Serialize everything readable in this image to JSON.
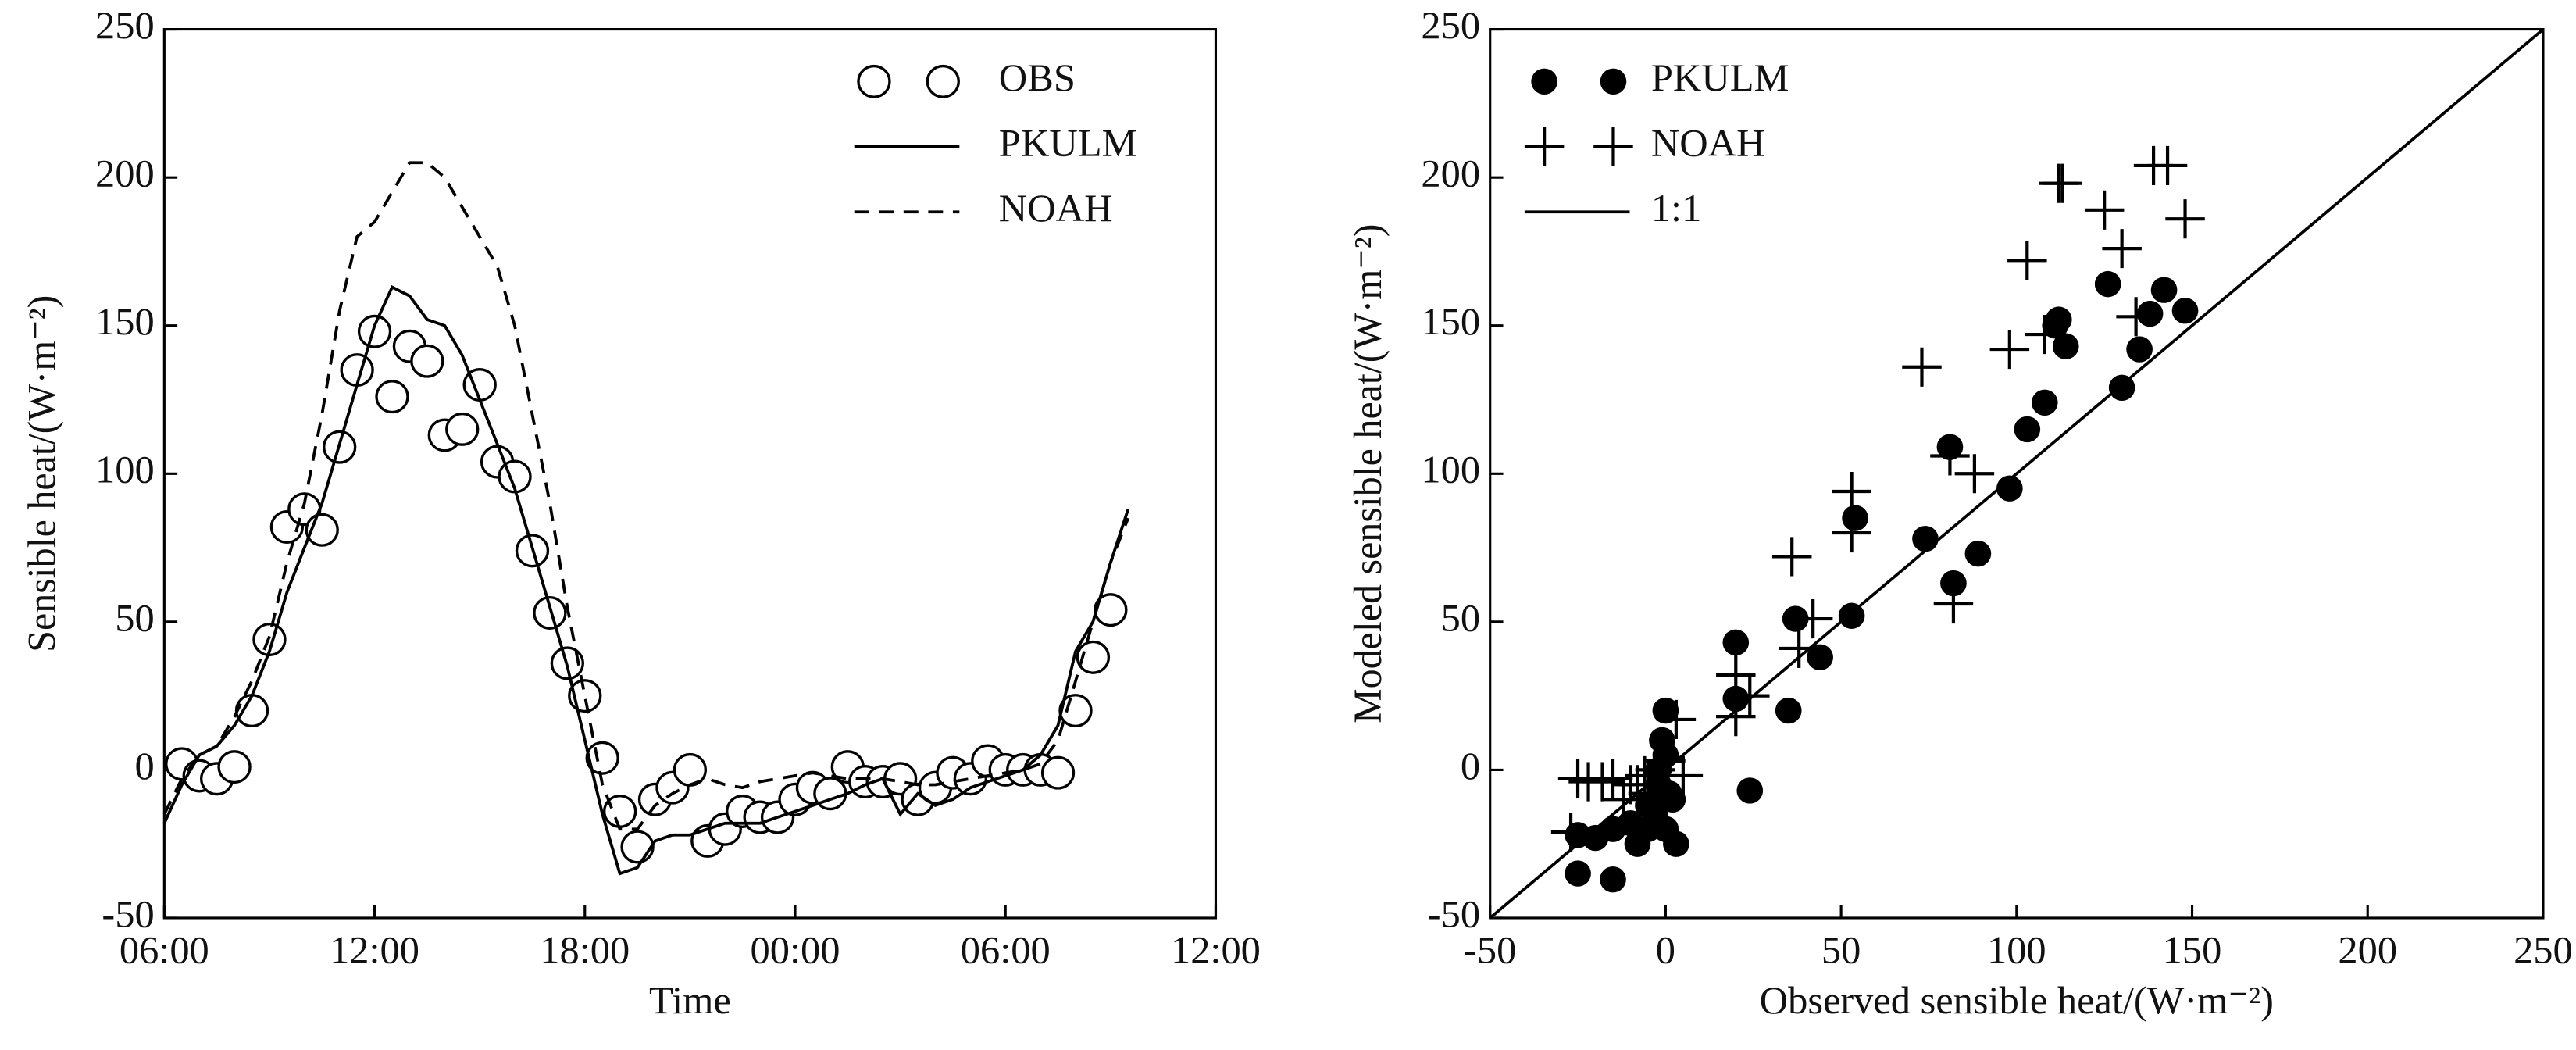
{
  "chart_data": [
    {
      "type": "line",
      "xlabel": "Time",
      "ylabel": "Sensible heat/(W·m⁻²)",
      "xlim": [
        6,
        36
      ],
      "ylim": [
        -50,
        250
      ],
      "xticks": [
        {
          "value": 6,
          "label": "06:00"
        },
        {
          "value": 12,
          "label": "12:00"
        },
        {
          "value": 18,
          "label": "18:00"
        },
        {
          "value": 24,
          "label": "00:00"
        },
        {
          "value": 30,
          "label": "06:00"
        },
        {
          "value": 36,
          "label": "12:00"
        }
      ],
      "yticks": [
        -50,
        0,
        50,
        100,
        150,
        200,
        250
      ],
      "legend": "upper right",
      "series": [
        {
          "name": "OBS",
          "color": "#000000",
          "marker": "circle",
          "x": [
            6.5,
            7,
            7.5,
            8,
            8.5,
            9,
            9.5,
            10,
            10.5,
            11,
            11.5,
            12,
            12.5,
            13,
            13.5,
            14,
            14.5,
            15,
            15.5,
            16,
            16.5,
            17,
            17.5,
            18,
            18.5,
            19,
            19.5,
            20,
            20.5,
            21,
            21.5,
            22,
            22.5,
            23,
            23.5,
            24,
            24.5,
            25,
            25.5,
            26,
            26.5,
            27,
            27.5,
            28,
            28.5,
            29,
            29.5,
            30,
            30.5,
            31,
            31.5,
            32,
            32.5,
            33
          ],
          "values": [
            2,
            -2,
            -3,
            1,
            20,
            44,
            82,
            88,
            81,
            109,
            135,
            148,
            126,
            143,
            138,
            113,
            115,
            130,
            104,
            99,
            74,
            53,
            36,
            25,
            4,
            -14,
            -26,
            -10,
            -6,
            0,
            -24,
            -20,
            -14,
            -16,
            -16,
            -10,
            -6,
            -8,
            1,
            -4,
            -4,
            -3,
            -10,
            -6,
            -1,
            -3,
            3,
            0,
            0,
            0,
            -1,
            20,
            38,
            54
          ]
        },
        {
          "name": "PKULM",
          "color": "#000000",
          "style": "solid",
          "x": [
            6,
            6.5,
            7,
            7.5,
            8,
            8.5,
            9,
            9.5,
            10,
            10.5,
            11,
            11.5,
            12,
            12.5,
            13,
            13.5,
            14,
            14.5,
            15,
            15.5,
            16,
            16.5,
            17,
            17.5,
            18,
            18.5,
            19,
            19.5,
            20,
            20.5,
            21,
            21.5,
            22,
            22.5,
            23,
            23.5,
            24,
            24.5,
            25,
            25.5,
            26,
            26.5,
            27,
            27.5,
            28,
            28.5,
            29,
            29.5,
            30,
            30.5,
            31,
            31.5,
            32,
            32.5,
            33,
            33.5
          ],
          "values": [
            -18,
            -5,
            5,
            8,
            15,
            25,
            40,
            60,
            75,
            90,
            110,
            130,
            150,
            163,
            160,
            152,
            150,
            140,
            125,
            110,
            95,
            75,
            55,
            35,
            10,
            -15,
            -35,
            -33,
            -24,
            -22,
            -22,
            -20,
            -18,
            -18,
            -18,
            -16,
            -14,
            -12,
            -10,
            -8,
            -5,
            -3,
            -15,
            -8,
            -12,
            -10,
            -6,
            -4,
            -2,
            0,
            5,
            15,
            40,
            50,
            70,
            88
          ]
        },
        {
          "name": "NOAH",
          "color": "#000000",
          "style": "dashed",
          "x": [
            6,
            6.5,
            7,
            7.5,
            8,
            8.5,
            9,
            9.5,
            10,
            10.5,
            11,
            11.5,
            12,
            12.5,
            13,
            13.5,
            14,
            14.5,
            15,
            15.5,
            16,
            16.5,
            17,
            17.5,
            18,
            18.5,
            19,
            19.5,
            20,
            20.5,
            21,
            21.5,
            22,
            22.5,
            23,
            23.5,
            24,
            24.5,
            25,
            25.5,
            26,
            26.5,
            27,
            27.5,
            28,
            28.5,
            29,
            29.5,
            30,
            30.5,
            31,
            31.5,
            32,
            32.5,
            33,
            33.5
          ],
          "values": [
            -15,
            -3,
            5,
            8,
            18,
            30,
            45,
            70,
            90,
            120,
            155,
            180,
            185,
            195,
            205,
            205,
            200,
            190,
            180,
            170,
            150,
            120,
            90,
            55,
            25,
            -5,
            -20,
            -20,
            -12,
            -8,
            -5,
            -3,
            -5,
            -6,
            -4,
            -3,
            -2,
            -1,
            -2,
            -3,
            -3,
            -3,
            -4,
            -5,
            -5,
            -4,
            -3,
            -2,
            -1,
            0,
            2,
            10,
            30,
            50,
            70,
            85
          ]
        }
      ]
    },
    {
      "type": "scatter",
      "xlabel": "Observed sensible heat/(W·m⁻²)",
      "ylabel": "Modeled sensible heat/(W·m⁻²)",
      "xlim": [
        -50,
        250
      ],
      "ylim": [
        -50,
        250
      ],
      "xticks": [
        -50,
        0,
        50,
        100,
        150,
        200,
        250
      ],
      "yticks": [
        -50,
        0,
        50,
        100,
        150,
        200,
        250
      ],
      "legend": "upper left",
      "series": [
        {
          "name": "PKULM",
          "color": "#000000",
          "marker": "dot",
          "x": [
            -25,
            -25,
            -20,
            -15,
            -15,
            -10,
            -8,
            -5,
            -5,
            -3,
            -2,
            -1,
            0,
            0,
            1,
            2,
            3,
            -2,
            0,
            20,
            20,
            24,
            35,
            37,
            44,
            53,
            54,
            74,
            81,
            82,
            89,
            98,
            103,
            108,
            111,
            112,
            114,
            126,
            130,
            135,
            138,
            142,
            148
          ],
          "values": [
            -35,
            -22,
            -23,
            -37,
            -20,
            -18,
            -25,
            -20,
            -12,
            -15,
            -5,
            10,
            20,
            -20,
            -8,
            -10,
            -25,
            0,
            5,
            43,
            24,
            -7,
            20,
            51,
            38,
            52,
            85,
            78,
            109,
            63,
            73,
            95,
            115,
            124,
            150,
            152,
            143,
            164,
            129,
            142,
            154,
            162,
            155
          ]
        },
        {
          "name": "NOAH",
          "color": "#000000",
          "marker": "plus",
          "x": [
            -27,
            -25,
            -22,
            -18,
            -15,
            -12,
            -10,
            -8,
            -6,
            -5,
            -3,
            0,
            3,
            5,
            20,
            20,
            24,
            36,
            38,
            42,
            53,
            53,
            73,
            81,
            82,
            88,
            98,
            103,
            108,
            112,
            113,
            125,
            130,
            134,
            139,
            143,
            148
          ],
          "values": [
            -21,
            -3,
            -4,
            -4,
            -3,
            -10,
            -5,
            -5,
            -2,
            -8,
            0,
            3,
            17,
            -2,
            18,
            32,
            25,
            72,
            41,
            51,
            80,
            94,
            136,
            106,
            56,
            100,
            142,
            172,
            147,
            198,
            198,
            189,
            176,
            153,
            204,
            204,
            186
          ]
        },
        {
          "name": "1:1",
          "color": "#000000",
          "style": "solid",
          "x": [
            -50,
            250
          ],
          "values": [
            -50,
            250
          ]
        }
      ]
    }
  ]
}
